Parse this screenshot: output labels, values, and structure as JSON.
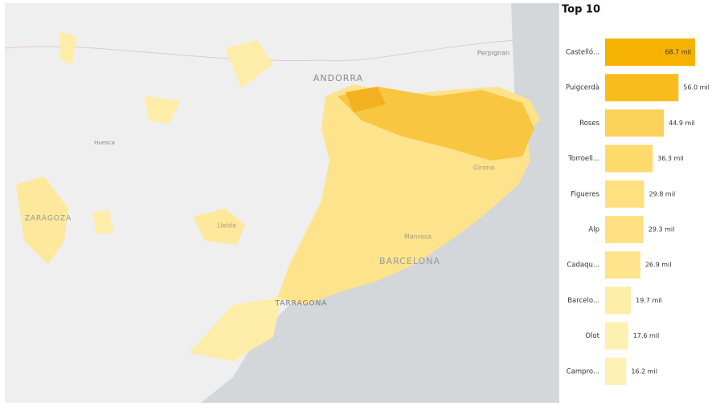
{
  "chart_data": {
    "type": "bar",
    "orientation": "horizontal",
    "title": "Top 10",
    "categories": [
      "Castelló...",
      "Puigcerdà",
      "Roses",
      "Torroell...",
      "Figueres",
      "Alp",
      "Cadaqu...",
      "Barcelo...",
      "Olot",
      "Campro..."
    ],
    "values": [
      68.7,
      56.0,
      44.9,
      36.3,
      29.8,
      29.3,
      26.9,
      19.7,
      17.6,
      16.2
    ],
    "value_labels": [
      "68.7 mil",
      "56.0 mil",
      "44.9 mil",
      "36.3 mil",
      "29.8 mil",
      "29.3 mil",
      "26.9 mil",
      "19.7 mil",
      "17.6 mil",
      "16.2 mil"
    ],
    "colors": [
      "#f5b300",
      "#f8bd1d",
      "#fbd35a",
      "#fcda6c",
      "#fde07f",
      "#fde081",
      "#fde38b",
      "#feeda8",
      "#fef0b1",
      "#fef1b6"
    ]
  },
  "map": {
    "labels": [
      "ANDORRA",
      "Perpignan",
      "Huesca",
      "ZARAGOZA",
      "Lleida",
      "Girona",
      "Manresa",
      "BARCELONA",
      "TARRAGONA"
    ]
  }
}
